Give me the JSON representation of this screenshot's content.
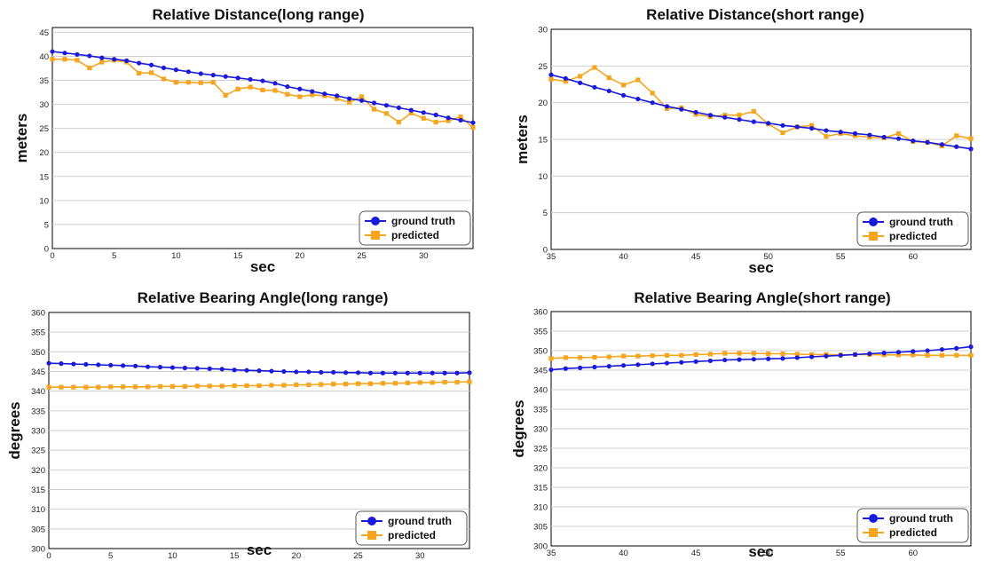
{
  "colors": {
    "ground_truth": "#1a1adb",
    "predicted": "#f5a51e",
    "grid": "#d0d0d0"
  },
  "legend_labels": {
    "ground_truth": "ground truth",
    "predicted": "predicted"
  },
  "chart_data": [
    {
      "type": "line",
      "title": "Relative Distance(long range)",
      "xlabel": "sec",
      "ylabel": "meters",
      "xlim": [
        0,
        34
      ],
      "ylim": [
        0,
        46
      ],
      "xticks": [
        0,
        5,
        10,
        15,
        20,
        25,
        30
      ],
      "yticks": [
        0,
        5,
        10,
        15,
        20,
        25,
        30,
        35,
        40,
        45
      ],
      "grid": "horizontal",
      "legend": "bottom-right",
      "x": [
        0,
        1,
        2,
        3,
        4,
        5,
        6,
        7,
        8,
        9,
        10,
        11,
        12,
        13,
        14,
        15,
        16,
        17,
        18,
        19,
        20,
        21,
        22,
        23,
        24,
        25,
        26,
        27,
        28,
        29,
        30,
        31,
        32,
        33,
        34
      ],
      "series": [
        {
          "name": "ground truth",
          "marker": "circle",
          "values": [
            41.0,
            40.7,
            40.4,
            40.1,
            39.7,
            39.4,
            39.1,
            38.6,
            38.2,
            37.6,
            37.2,
            36.8,
            36.4,
            36.1,
            35.8,
            35.5,
            35.2,
            34.9,
            34.4,
            33.7,
            33.2,
            32.7,
            32.2,
            31.8,
            31.2,
            30.8,
            30.3,
            29.8,
            29.3,
            28.8,
            28.3,
            27.8,
            27.2,
            26.7,
            26.2
          ]
        },
        {
          "name": "predicted",
          "marker": "square",
          "values": [
            39.4,
            39.4,
            39.2,
            37.6,
            38.8,
            39.2,
            38.8,
            36.5,
            36.6,
            35.3,
            34.6,
            34.6,
            34.5,
            34.6,
            31.9,
            33.2,
            33.6,
            33.0,
            32.9,
            32.1,
            31.6,
            32.0,
            31.8,
            31.2,
            30.4,
            31.6,
            29.0,
            28.1,
            26.3,
            28.2,
            27.1,
            26.3,
            26.6,
            27.4,
            25.2
          ]
        }
      ]
    },
    {
      "type": "line",
      "title": "Relative Distance(short range)",
      "xlabel": "sec",
      "ylabel": "meters",
      "xlim": [
        35,
        64
      ],
      "ylim": [
        0,
        30
      ],
      "xticks": [
        35,
        40,
        45,
        50,
        55,
        60
      ],
      "yticks": [
        0,
        5,
        10,
        15,
        20,
        25,
        30
      ],
      "grid": "horizontal",
      "legend": "bottom-right",
      "x": [
        35,
        36,
        37,
        38,
        39,
        40,
        41,
        42,
        43,
        44,
        45,
        46,
        47,
        48,
        49,
        50,
        51,
        52,
        53,
        54,
        55,
        56,
        57,
        58,
        59,
        60,
        61,
        62,
        63,
        64
      ],
      "series": [
        {
          "name": "ground truth",
          "marker": "circle",
          "values": [
            23.8,
            23.3,
            22.7,
            22.1,
            21.6,
            21.0,
            20.5,
            20.0,
            19.5,
            19.1,
            18.7,
            18.3,
            18.0,
            17.7,
            17.4,
            17.2,
            16.9,
            16.7,
            16.5,
            16.2,
            16.0,
            15.8,
            15.6,
            15.3,
            15.1,
            14.8,
            14.6,
            14.3,
            14.0,
            13.7
          ]
        },
        {
          "name": "predicted",
          "marker": "square",
          "values": [
            23.2,
            22.9,
            23.6,
            24.8,
            23.4,
            22.4,
            23.1,
            21.3,
            19.2,
            19.3,
            18.4,
            18.1,
            18.3,
            18.3,
            18.8,
            17.1,
            15.9,
            16.7,
            16.9,
            15.4,
            15.8,
            15.5,
            15.3,
            15.2,
            15.8,
            14.7,
            14.6,
            14.1,
            15.5,
            15.1
          ]
        }
      ]
    },
    {
      "type": "line",
      "title": "Relative Bearing Angle(long range)",
      "xlabel": "sec",
      "ylabel": "degrees",
      "xlim": [
        0,
        34
      ],
      "ylim": [
        300,
        360
      ],
      "xticks": [
        0,
        5,
        10,
        15,
        20,
        25,
        30
      ],
      "yticks": [
        300,
        305,
        310,
        315,
        320,
        325,
        330,
        335,
        340,
        345,
        350,
        355,
        360
      ],
      "grid": "horizontal",
      "legend": "bottom-right",
      "x": [
        0,
        1,
        2,
        3,
        4,
        5,
        6,
        7,
        8,
        9,
        10,
        11,
        12,
        13,
        14,
        15,
        16,
        17,
        18,
        19,
        20,
        21,
        22,
        23,
        24,
        25,
        26,
        27,
        28,
        29,
        30,
        31,
        32,
        33,
        34
      ],
      "series": [
        {
          "name": "ground truth",
          "marker": "circle",
          "values": [
            347.1,
            347.0,
            346.9,
            346.8,
            346.7,
            346.6,
            346.5,
            346.4,
            346.2,
            346.1,
            346.0,
            345.9,
            345.8,
            345.7,
            345.6,
            345.4,
            345.3,
            345.2,
            345.1,
            345.0,
            344.9,
            344.9,
            344.8,
            344.8,
            344.7,
            344.7,
            344.6,
            344.6,
            344.6,
            344.6,
            344.6,
            344.6,
            344.6,
            344.6,
            344.7
          ]
        },
        {
          "name": "predicted",
          "marker": "square",
          "values": [
            341.0,
            341.0,
            341.0,
            341.0,
            341.0,
            341.1,
            341.1,
            341.1,
            341.1,
            341.2,
            341.2,
            341.2,
            341.3,
            341.3,
            341.3,
            341.4,
            341.4,
            341.4,
            341.5,
            341.5,
            341.6,
            341.6,
            341.7,
            341.8,
            341.8,
            341.9,
            341.9,
            342.0,
            342.0,
            342.1,
            342.2,
            342.2,
            342.3,
            342.3,
            342.4
          ]
        }
      ]
    },
    {
      "type": "line",
      "title": "Relative Bearing Angle(short range)",
      "xlabel": "sec",
      "ylabel": "degrees",
      "xlim": [
        35,
        64
      ],
      "ylim": [
        300,
        360
      ],
      "xticks": [
        35,
        40,
        45,
        50,
        55,
        60
      ],
      "yticks": [
        300,
        305,
        310,
        315,
        320,
        325,
        330,
        335,
        340,
        345,
        350,
        355,
        360
      ],
      "grid": "horizontal",
      "legend": "bottom-right",
      "x": [
        35,
        36,
        37,
        38,
        39,
        40,
        41,
        42,
        43,
        44,
        45,
        46,
        47,
        48,
        49,
        50,
        51,
        52,
        53,
        54,
        55,
        56,
        57,
        58,
        59,
        60,
        61,
        62,
        63,
        64
      ],
      "series": [
        {
          "name": "ground truth",
          "marker": "circle",
          "values": [
            345.1,
            345.4,
            345.6,
            345.8,
            346.0,
            346.2,
            346.4,
            346.6,
            346.8,
            347.0,
            347.2,
            347.4,
            347.6,
            347.7,
            347.8,
            347.9,
            348.0,
            348.2,
            348.4,
            348.6,
            348.8,
            349.0,
            349.2,
            349.4,
            349.6,
            349.8,
            350.0,
            350.3,
            350.6,
            351.0
          ]
        },
        {
          "name": "predicted",
          "marker": "square",
          "values": [
            348.0,
            348.2,
            348.2,
            348.3,
            348.4,
            348.6,
            348.6,
            348.7,
            348.8,
            348.8,
            349.0,
            349.1,
            349.3,
            349.3,
            349.3,
            349.2,
            349.2,
            349.1,
            349.0,
            349.0,
            348.9,
            349.0,
            349.0,
            348.9,
            348.9,
            348.9,
            348.8,
            348.8,
            348.8,
            348.8
          ]
        }
      ]
    }
  ]
}
